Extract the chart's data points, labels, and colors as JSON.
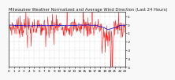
{
  "title": "Milwaukee Weather Normalized and Average Wind Direction (Last 24 Hours)",
  "bg_color": "#f8f8f8",
  "plot_bg_color": "#ffffff",
  "grid_color": "#bbbbbb",
  "line_color": "#ff0000",
  "avg_color": "#0000cc",
  "ylim": [
    -5,
    1.5
  ],
  "xlim": [
    0,
    287
  ],
  "num_points": 288,
  "noise_seed": 7,
  "title_fontsize": 3.8,
  "tick_fontsize": 3.0,
  "linewidth": 0.35,
  "avg_linewidth": 0.6
}
